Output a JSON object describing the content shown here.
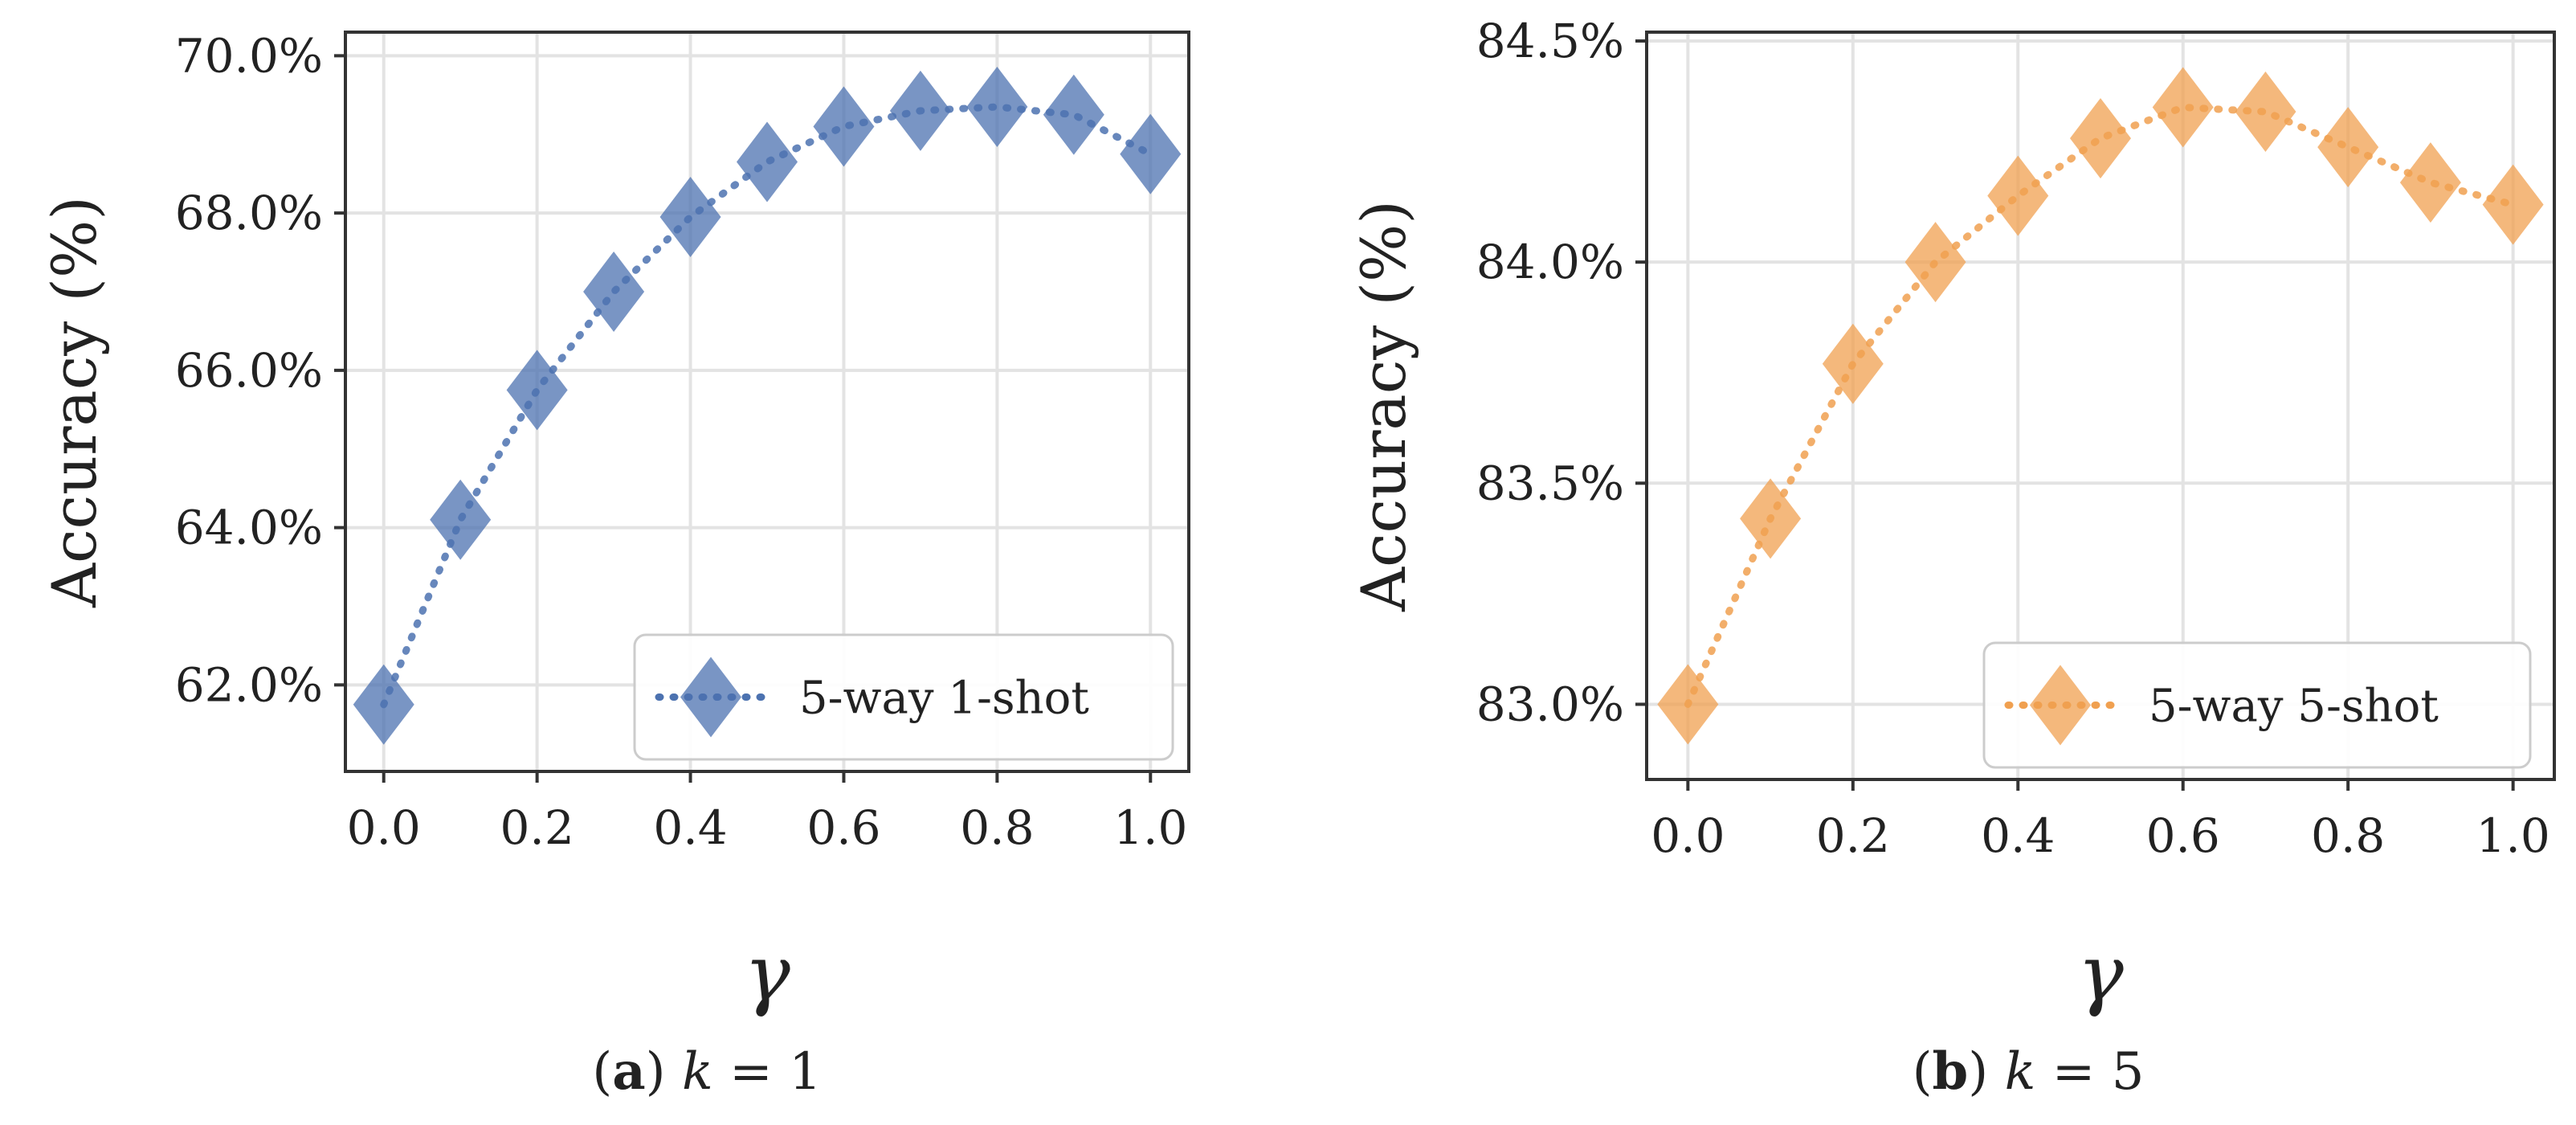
{
  "chart_data": [
    {
      "type": "line",
      "panel": "(a)",
      "caption": {
        "letter": "a",
        "math_var": "k",
        "math_rest": " = 1"
      },
      "xlabel": "γ",
      "ylabel": "Accuracy (%)",
      "x": [
        0.0,
        0.1,
        0.2,
        0.3,
        0.4,
        0.5,
        0.6,
        0.7,
        0.8,
        0.9,
        1.0
      ],
      "xlim": [
        -0.05,
        1.05
      ],
      "ylim": [
        60.9,
        70.3
      ],
      "xticks": [
        0.0,
        0.2,
        0.4,
        0.6,
        0.8,
        1.0
      ],
      "xtick_labels": [
        "0.0",
        "0.2",
        "0.4",
        "0.6",
        "0.8",
        "1.0"
      ],
      "yticks": [
        62.0,
        64.0,
        66.0,
        68.0,
        70.0
      ],
      "ytick_labels": [
        "62.0%",
        "64.0%",
        "66.0%",
        "68.0%",
        "70.0%"
      ],
      "grid": true,
      "legend_position": "bottom-right",
      "series": [
        {
          "name": "5-way 1-shot",
          "color": "#4c72b0",
          "marker": "diamond",
          "linestyle": "dotted",
          "values": [
            61.75,
            64.1,
            65.75,
            67.0,
            67.95,
            68.65,
            69.1,
            69.3,
            69.35,
            69.25,
            68.75
          ]
        }
      ]
    },
    {
      "type": "line",
      "panel": "(b)",
      "caption": {
        "letter": "b",
        "math_var": "k",
        "math_rest": " = 5"
      },
      "xlabel": "γ",
      "ylabel": "Accuracy (%)",
      "x": [
        0.0,
        0.1,
        0.2,
        0.3,
        0.4,
        0.5,
        0.6,
        0.7,
        0.8,
        0.9,
        1.0
      ],
      "xlim": [
        -0.05,
        1.05
      ],
      "ylim": [
        82.83,
        84.52
      ],
      "xticks": [
        0.0,
        0.2,
        0.4,
        0.6,
        0.8,
        1.0
      ],
      "xtick_labels": [
        "0.0",
        "0.2",
        "0.4",
        "0.6",
        "0.8",
        "1.0"
      ],
      "yticks": [
        83.0,
        83.5,
        84.0,
        84.5
      ],
      "ytick_labels": [
        "83.0%",
        "83.5%",
        "84.0%",
        "84.5%"
      ],
      "grid": true,
      "legend_position": "bottom-right",
      "series": [
        {
          "name": "5-way 5-shot",
          "color": "#f0a050",
          "marker": "diamond",
          "linestyle": "dotted",
          "values": [
            83.0,
            83.42,
            83.77,
            84.0,
            84.15,
            84.28,
            84.35,
            84.34,
            84.26,
            84.18,
            84.13
          ]
        }
      ]
    }
  ]
}
